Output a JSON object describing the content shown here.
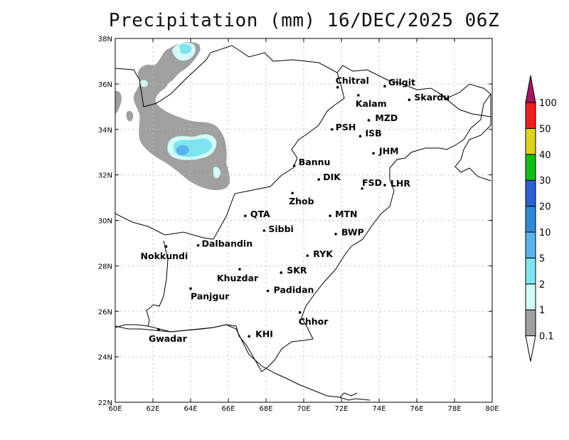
{
  "title": "Precipitation (mm) 16/DEC/2025 06Z",
  "map": {
    "lon_range": [
      60,
      80
    ],
    "lat_range": [
      22,
      38
    ],
    "x_ticks": [
      "60E",
      "62E",
      "64E",
      "66E",
      "68E",
      "70E",
      "72E",
      "74E",
      "76E",
      "78E",
      "80E"
    ],
    "y_ticks": [
      "22N",
      "24N",
      "26N",
      "28N",
      "30N",
      "32N",
      "34N",
      "36N",
      "38N"
    ],
    "grid": "dotted"
  },
  "cities": [
    {
      "name": "Chitral",
      "lon": 71.8,
      "lat": 35.85
    },
    {
      "name": "Gilgit",
      "lon": 74.3,
      "lat": 35.9
    },
    {
      "name": "Kalam",
      "lon": 72.9,
      "lat": 35.5
    },
    {
      "name": "Skardu",
      "lon": 75.6,
      "lat": 35.3
    },
    {
      "name": "MZD",
      "lon": 73.45,
      "lat": 34.4
    },
    {
      "name": "PSH",
      "lon": 71.5,
      "lat": 34.0
    },
    {
      "name": "ISB",
      "lon": 73.0,
      "lat": 33.7
    },
    {
      "name": "JHM",
      "lon": 73.7,
      "lat": 32.95
    },
    {
      "name": "Bannu",
      "lon": 69.5,
      "lat": 32.4
    },
    {
      "name": "DIK",
      "lon": 70.8,
      "lat": 31.8
    },
    {
      "name": "FSD",
      "lon": 73.1,
      "lat": 31.4
    },
    {
      "name": "LHR",
      "lon": 74.3,
      "lat": 31.55
    },
    {
      "name": "Zhob",
      "lon": 69.4,
      "lat": 31.2
    },
    {
      "name": "QTA",
      "lon": 66.9,
      "lat": 30.2
    },
    {
      "name": "MTN",
      "lon": 71.4,
      "lat": 30.2
    },
    {
      "name": "Sibbi",
      "lon": 67.9,
      "lat": 29.55
    },
    {
      "name": "BWP",
      "lon": 71.7,
      "lat": 29.4
    },
    {
      "name": "Nokkundi",
      "lon": 62.7,
      "lat": 28.85
    },
    {
      "name": "Dalbandin",
      "lon": 64.4,
      "lat": 28.9
    },
    {
      "name": "RYK",
      "lon": 70.2,
      "lat": 28.45
    },
    {
      "name": "Khuzdar",
      "lon": 66.6,
      "lat": 27.85
    },
    {
      "name": "SKR",
      "lon": 68.8,
      "lat": 27.7
    },
    {
      "name": "Panjgur",
      "lon": 64.0,
      "lat": 27.0
    },
    {
      "name": "Padidan",
      "lon": 68.1,
      "lat": 26.9
    },
    {
      "name": "Chhor",
      "lon": 69.8,
      "lat": 25.95
    },
    {
      "name": "KHI",
      "lon": 67.1,
      "lat": 24.9
    },
    {
      "name": "Gwadar",
      "lon": 62.3,
      "lat": 25.2
    }
  ],
  "precip_areas": [
    {
      "level": "0.1",
      "color": "#a0a0a0"
    },
    {
      "level": "1",
      "color": "#d2fcfa"
    },
    {
      "level": "2",
      "color": "#7ee4f0"
    },
    {
      "level": "5",
      "color": "#58b4ec"
    }
  ],
  "colorbar": {
    "labels": [
      "0.1",
      "1",
      "2",
      "5",
      "10",
      "20",
      "30",
      "40",
      "50",
      "100"
    ],
    "colors": [
      "#a0a0a0",
      "#d2fcfa",
      "#7ee4f0",
      "#58b4ec",
      "#2e8ad8",
      "#2c60d4",
      "#10c010",
      "#e0d020",
      "#f02020",
      "#a01860"
    ]
  }
}
